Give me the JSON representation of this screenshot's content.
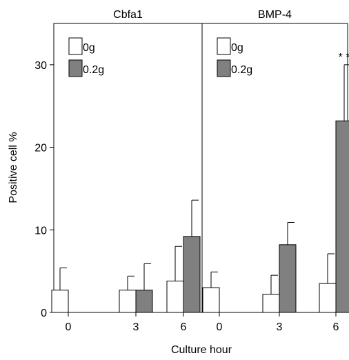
{
  "chart_data": {
    "type": "bar",
    "ylabel": "Positive cell %",
    "xlabel": "Culture hour",
    "ylim": [
      0,
      35
    ],
    "yticks": [
      0,
      10,
      20,
      30
    ],
    "categories": [
      "0",
      "3",
      "6"
    ],
    "error_bars": "upper",
    "panels": [
      {
        "title": "Cbfa1",
        "series": [
          {
            "name": "0g",
            "color": "#ffffff",
            "values": [
              2.7,
              2.7,
              3.8
            ],
            "errors": [
              2.7,
              1.7,
              4.2
            ]
          },
          {
            "name": "0.2g",
            "color": "#808080",
            "values": [
              0,
              2.7,
              9.2
            ],
            "errors": [
              0,
              3.2,
              4.4
            ]
          }
        ],
        "annotation": ""
      },
      {
        "title": "BMP-4",
        "series": [
          {
            "name": "0g",
            "color": "#ffffff",
            "values": [
              3.0,
              2.2,
              3.5
            ],
            "errors": [
              1.9,
              2.3,
              3.6
            ]
          },
          {
            "name": "0.2g",
            "color": "#808080",
            "values": [
              0,
              8.2,
              23.2
            ],
            "errors": [
              0,
              2.7,
              6.8
            ]
          }
        ],
        "annotation": "* *"
      }
    ]
  }
}
